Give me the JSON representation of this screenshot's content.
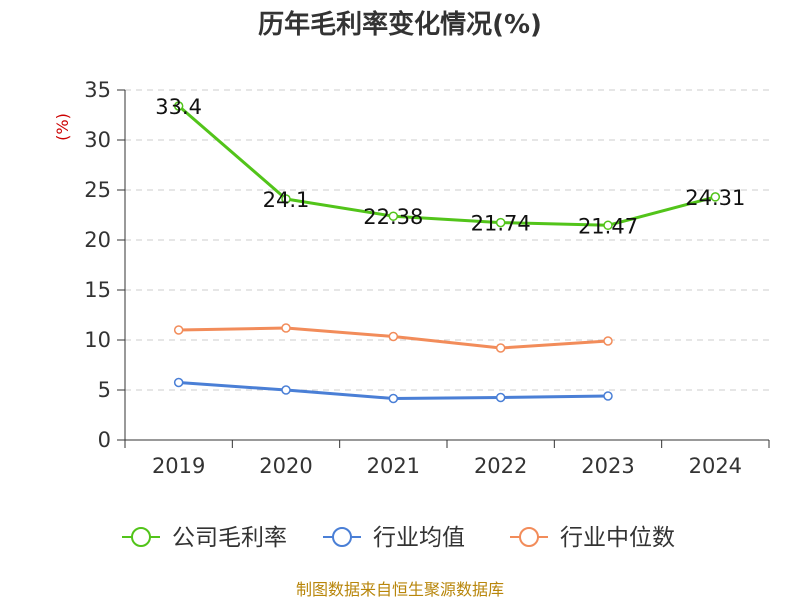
{
  "chart_data": {
    "type": "line",
    "title": "历年毛利率变化情况(%)",
    "ylabel": "(%)",
    "xlabel": "",
    "categories": [
      "2019",
      "2020",
      "2021",
      "2022",
      "2023",
      "2024"
    ],
    "ylim": [
      0,
      35
    ],
    "yticks": [
      0,
      5,
      10,
      15,
      20,
      25,
      30,
      35
    ],
    "grid": "horizontal-dashed",
    "legend_position": "bottom",
    "series": [
      {
        "name": "公司毛利率",
        "color": "#52c41a",
        "values": [
          33.4,
          24.1,
          22.38,
          21.74,
          21.47,
          24.31
        ],
        "labels": [
          "33.4",
          "24.1",
          "22.38",
          "21.74",
          "21.47",
          "24.31"
        ]
      },
      {
        "name": "行业均值",
        "color": "#4a7fd6",
        "values": [
          5.75,
          5.0,
          4.15,
          4.25,
          4.4,
          null
        ]
      },
      {
        "name": "行业中位数",
        "color": "#f28c5a",
        "values": [
          11.0,
          11.2,
          10.35,
          9.2,
          9.9,
          null
        ]
      }
    ],
    "source": "制图数据来自恒生聚源数据库"
  }
}
